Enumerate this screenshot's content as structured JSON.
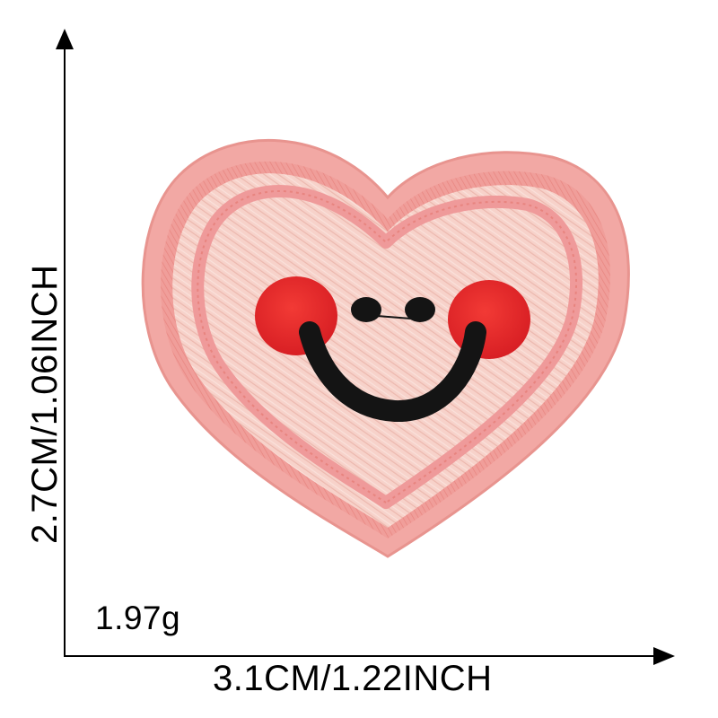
{
  "dimensions": {
    "height_text": "2.7CM/1.06INCH",
    "width_text": "3.1CM/1.22INCH",
    "weight_text": "1.97g"
  },
  "colors": {
    "background": "#ffffff",
    "axis": "#000000",
    "patch_fill": "#f6cfc7",
    "patch_border": "#ef9a9a",
    "cheeks": "#e8262b",
    "face_features": "#141414"
  },
  "product": {
    "icon": "smiling-heart-patch-icon"
  }
}
